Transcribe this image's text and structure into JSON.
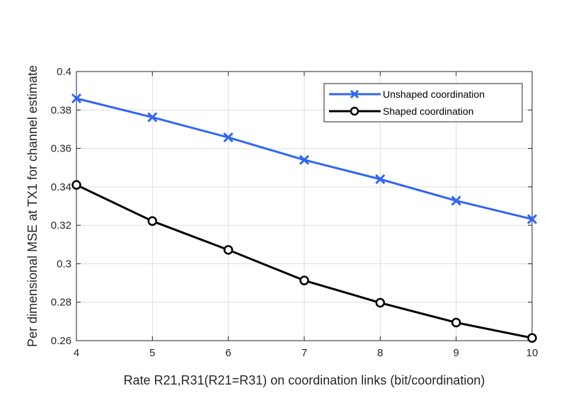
{
  "chart_data": {
    "type": "line",
    "title": "",
    "xlabel": "Rate R21,R31(R21=R31) on coordination links (bit/coordination)",
    "ylabel": "Per dimensional MSE at TX1 for channel estimate",
    "xlim": [
      4,
      10
    ],
    "ylim": [
      0.26,
      0.4
    ],
    "xticks": [
      4,
      5,
      6,
      7,
      8,
      9,
      10
    ],
    "xtick_labels": [
      "4",
      "5",
      "6",
      "7",
      "8",
      "9",
      "10"
    ],
    "yticks": [
      0.26,
      0.28,
      0.3,
      0.32,
      0.34,
      0.36,
      0.38,
      0.4
    ],
    "ytick_labels": [
      "0.26",
      "0.28",
      "0.3",
      "0.32",
      "0.34",
      "0.36",
      "0.38",
      "0.4"
    ],
    "grid": true,
    "legend_position": "top-right",
    "x": [
      4,
      5,
      6,
      7,
      8,
      9,
      10
    ],
    "series": [
      {
        "name": "Unshaped coordination",
        "values": [
          0.386,
          0.3762,
          0.3657,
          0.354,
          0.344,
          0.3328,
          0.3232
        ],
        "color": "#3366ee",
        "marker": "x"
      },
      {
        "name": "Shaped coordination",
        "values": [
          0.341,
          0.3222,
          0.3072,
          0.2913,
          0.2797,
          0.2694,
          0.2614
        ],
        "color": "#000000",
        "marker": "o"
      }
    ]
  }
}
